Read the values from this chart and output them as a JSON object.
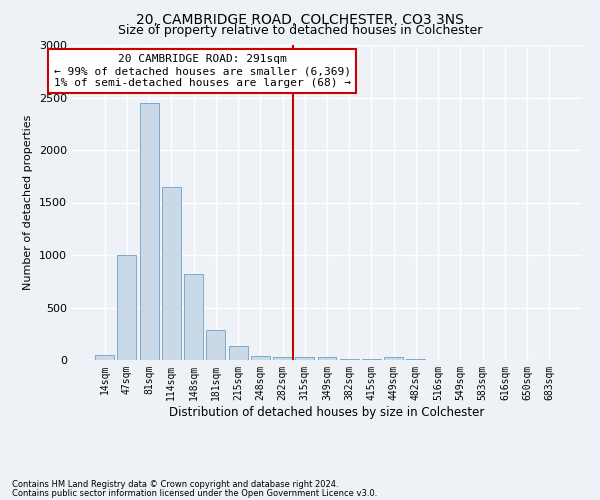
{
  "title": "20, CAMBRIDGE ROAD, COLCHESTER, CO3 3NS",
  "subtitle": "Size of property relative to detached houses in Colchester",
  "xlabel": "Distribution of detached houses by size in Colchester",
  "ylabel": "Number of detached properties",
  "bar_color": "#c9d9e8",
  "bar_edge_color": "#7aaac8",
  "categories": [
    "14sqm",
    "47sqm",
    "81sqm",
    "114sqm",
    "148sqm",
    "181sqm",
    "215sqm",
    "248sqm",
    "282sqm",
    "315sqm",
    "349sqm",
    "382sqm",
    "415sqm",
    "449sqm",
    "482sqm",
    "516sqm",
    "549sqm",
    "583sqm",
    "616sqm",
    "650sqm",
    "683sqm"
  ],
  "values": [
    50,
    1000,
    2450,
    1650,
    820,
    290,
    130,
    40,
    30,
    30,
    25,
    5,
    5,
    30,
    5,
    0,
    0,
    0,
    0,
    0,
    0
  ],
  "vline_x": 8.45,
  "vline_color": "#cc0000",
  "annotation_text": "20 CAMBRIDGE ROAD: 291sqm\n← 99% of detached houses are smaller (6,369)\n1% of semi-detached houses are larger (68) →",
  "annotation_box_color": "#ffffff",
  "annotation_box_edge_color": "#cc0000",
  "background_color": "#eef2f7",
  "grid_color": "#ffffff",
  "footer_line1": "Contains HM Land Registry data © Crown copyright and database right 2024.",
  "footer_line2": "Contains public sector information licensed under the Open Government Licence v3.0.",
  "ylim": [
    0,
    3000
  ],
  "title_fontsize": 10,
  "subtitle_fontsize": 9,
  "annotation_fontsize": 8,
  "ylabel_fontsize": 8,
  "xlabel_fontsize": 8.5,
  "tick_fontsize": 7
}
